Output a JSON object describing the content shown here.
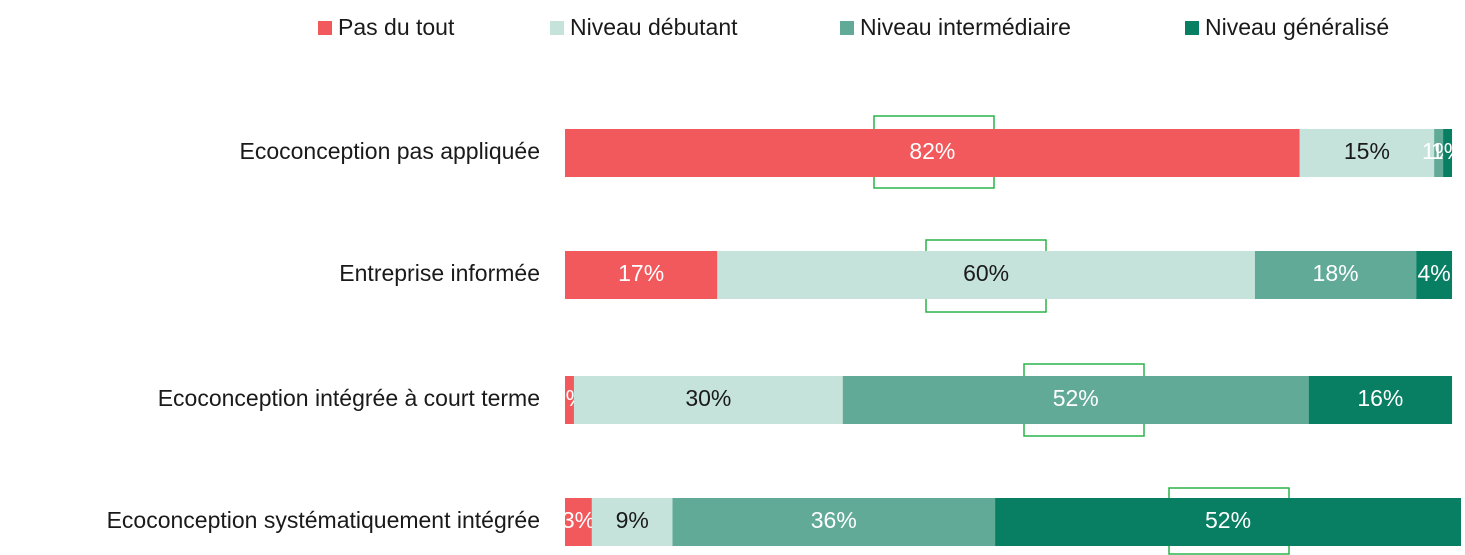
{
  "chart_data": {
    "type": "stacked-bar-horizontal",
    "categories": [
      "Ecoconception pas appliquée",
      "Entreprise informée",
      "Ecoconception intégrée à court terme",
      "Ecoconception systématiquement intégrée"
    ],
    "series": [
      {
        "name": "Pas du tout",
        "color": "#f2595c",
        "values": [
          82,
          17,
          1,
          3
        ],
        "value_labels": [
          "82%",
          "17%",
          "1%",
          "3%"
        ]
      },
      {
        "name": "Niveau débutant",
        "color": "#c5e3da",
        "values": [
          15,
          60,
          30,
          9
        ],
        "value_labels": [
          "15%",
          "60%",
          "30%",
          "9%"
        ]
      },
      {
        "name": "Niveau intermédiaire",
        "color": "#62aa98",
        "values": [
          1,
          18,
          52,
          36
        ],
        "value_labels": [
          "1%",
          "18%",
          "52%",
          "36%"
        ]
      },
      {
        "name": "Niveau généralisé",
        "color": "#087f63",
        "values": [
          1,
          4,
          16,
          52
        ],
        "value_labels": [
          "1%",
          "4%",
          "16%",
          "52%"
        ]
      }
    ],
    "xlim": [
      0,
      100
    ],
    "legend": "top"
  }
}
